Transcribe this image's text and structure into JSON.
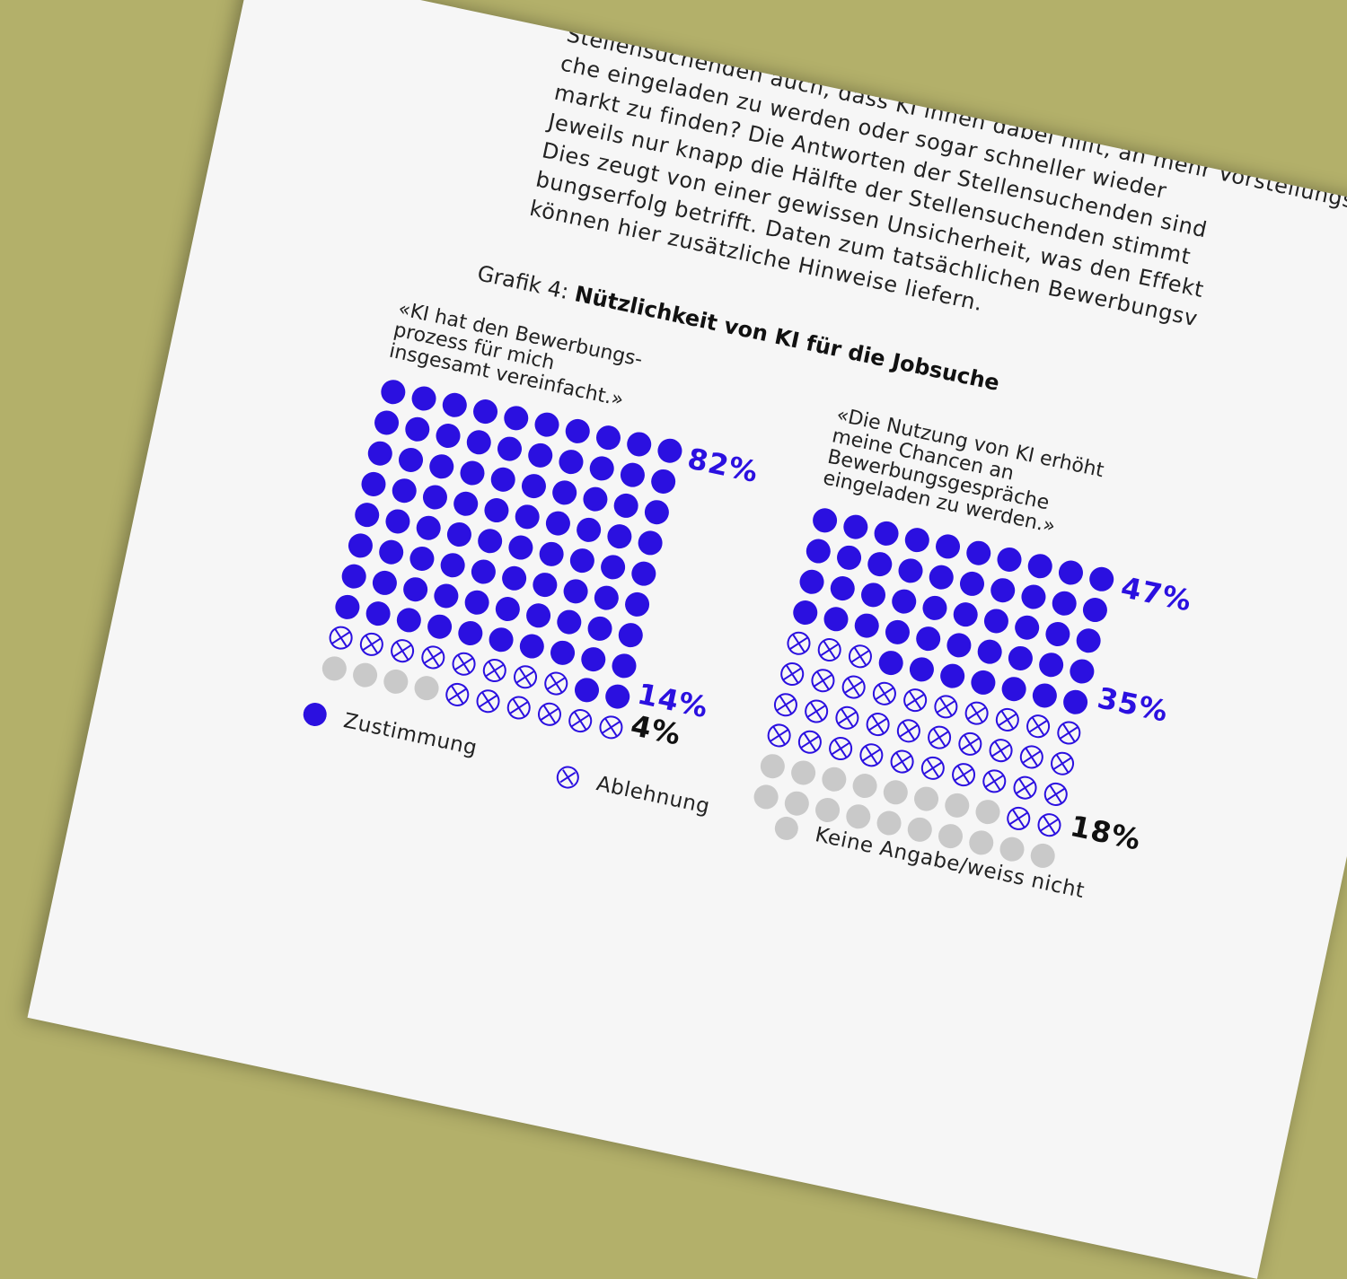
{
  "page_text": {
    "lines": [
      "Stellensuchenden auch, dass KI ihnen dabei hilft, an mehr Vorstellungsgespräche eingeladen zu werden oder sogar schneller wieder eine Stelle auf dem Arbeits-",
      "che eingeladen zu werden oder sogar schneller wieder",
      "markt zu finden? Die Antworten der Stellensuchenden sind",
      "Jeweils nur knapp die Hälfte der Stellensuchenden stimmt",
      "Dies zeugt von einer gewissen Unsicherheit, was den Effekt",
      "bungserfolg betrifft. Daten zum tatsächlichen Bewerbungsv",
      "können hier zusätzliche Hinweise liefern."
    ]
  },
  "figure": {
    "label": "Grafik 4:",
    "title": "Nützlichkeit von KI für die Jobsuche"
  },
  "legend": {
    "agree": "Zustimmung",
    "disagree": "Ablehnung",
    "no_answer": "Keine Angabe/weiss nicht"
  },
  "colors": {
    "agree": "#2b10e0",
    "disagree": "#2b10e0",
    "no_answer": "#c9c9c9",
    "text": "#222222"
  },
  "chart_data": [
    {
      "type": "waffle",
      "title": "«KI hat den Bewerbungs- prozess für mich insgesamt vereinfacht.»",
      "quote_lines": [
        "«KI hat den Bewerbungs-",
        "prozess für mich",
        "insgesamt vereinfacht.»"
      ],
      "categories": [
        "Zustimmung",
        "Ablehnung",
        "Keine Angabe/weiss nicht"
      ],
      "values": [
        82,
        14,
        4
      ],
      "labels": [
        "82%",
        "14%",
        "4%"
      ],
      "total": 100
    },
    {
      "type": "waffle",
      "title": "«Die Nutzung von KI erhöht meine Chancen an Bewerbungsgespräche eingeladen zu werden.»",
      "quote_lines": [
        "«Die Nutzung von KI erhöht",
        "meine Chancen an",
        "Bewerbungsgespräche",
        "eingeladen zu werden.»"
      ],
      "categories": [
        "Zustimmung",
        "Ablehnung",
        "Keine Angabe/weiss nicht"
      ],
      "values": [
        47,
        35,
        18
      ],
      "labels": [
        "47%",
        "35%",
        "18%"
      ],
      "total": 100
    }
  ]
}
